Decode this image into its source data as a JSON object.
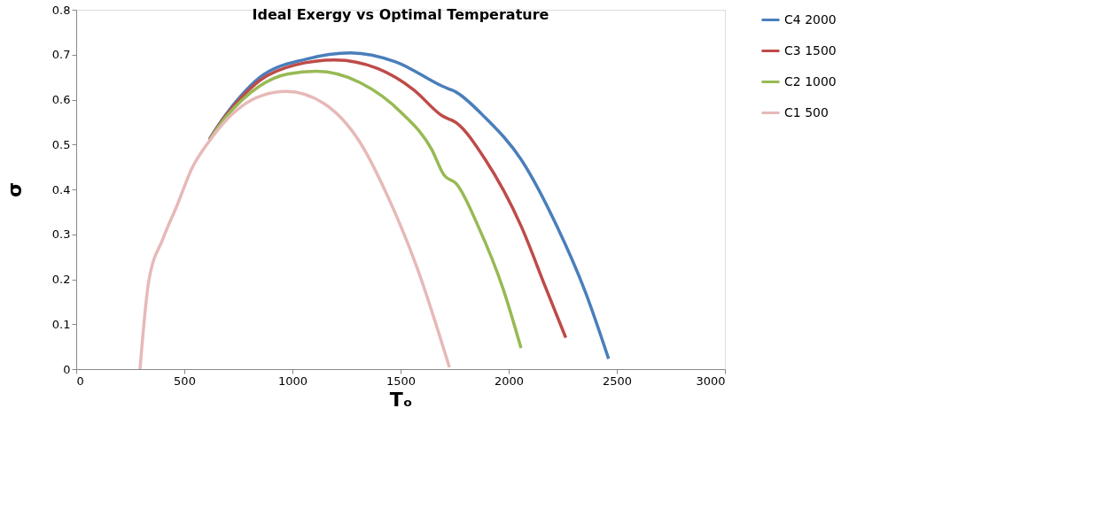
{
  "chart_data": {
    "type": "line",
    "title": "Ideal Exergy vs Optimal Temperature",
    "xlabel": "Tₒ",
    "ylabel": "σ",
    "xlim": [
      0,
      3000
    ],
    "xticks": [
      0,
      500,
      1000,
      1500,
      2000,
      2500,
      3000
    ],
    "ylim": [
      0,
      0.8
    ],
    "yticks": [
      0,
      0.1,
      0.2,
      0.3,
      0.4,
      0.5,
      0.6,
      0.7,
      0.8
    ],
    "grid": false,
    "legend": "right",
    "marker": "none",
    "line_style": "solid",
    "series": [
      {
        "name": "C4 2000",
        "color": "#4a7ebb",
        "x": [
          616,
          682,
          765,
          848,
          1063,
          1270,
          1477,
          1692,
          1759,
          1891,
          2057,
          2222,
          2355,
          2462
        ],
        "values": [
          0.512,
          0.56,
          0.61,
          0.649,
          0.69,
          0.704,
          0.684,
          0.63,
          0.616,
          0.56,
          0.467,
          0.319,
          0.171,
          0.023
        ]
      },
      {
        "name": "C3 1500",
        "color": "#be4b48",
        "x": [
          616,
          682,
          765,
          848,
          1013,
          1196,
          1394,
          1560,
          1692,
          1759,
          1891,
          2057,
          2173,
          2264
        ],
        "values": [
          0.511,
          0.558,
          0.605,
          0.642,
          0.677,
          0.688,
          0.669,
          0.622,
          0.564,
          0.548,
          0.467,
          0.319,
          0.179,
          0.07
        ]
      },
      {
        "name": "C2 1000",
        "color": "#98b954",
        "x": [
          616,
          682,
          765,
          848,
          980,
          1113,
          1312,
          1510,
          1643,
          1701,
          1759,
          1858,
          1974,
          2057
        ],
        "values": [
          0.51,
          0.555,
          0.598,
          0.63,
          0.657,
          0.663,
          0.638,
          0.568,
          0.49,
          0.432,
          0.412,
          0.319,
          0.179,
          0.047
        ]
      },
      {
        "name": "C1 500",
        "color": "#e6b9b8",
        "x": [
          295,
          335,
          401,
          467,
          533,
          616,
          682,
          765,
          860,
          972,
          1146,
          1312,
          1444,
          1577,
          1726
        ],
        "values": [
          0,
          0.194,
          0.29,
          0.365,
          0.445,
          0.508,
          0.548,
          0.585,
          0.609,
          0.618,
          0.591,
          0.505,
          0.381,
          0.225,
          0.004
        ]
      }
    ]
  }
}
